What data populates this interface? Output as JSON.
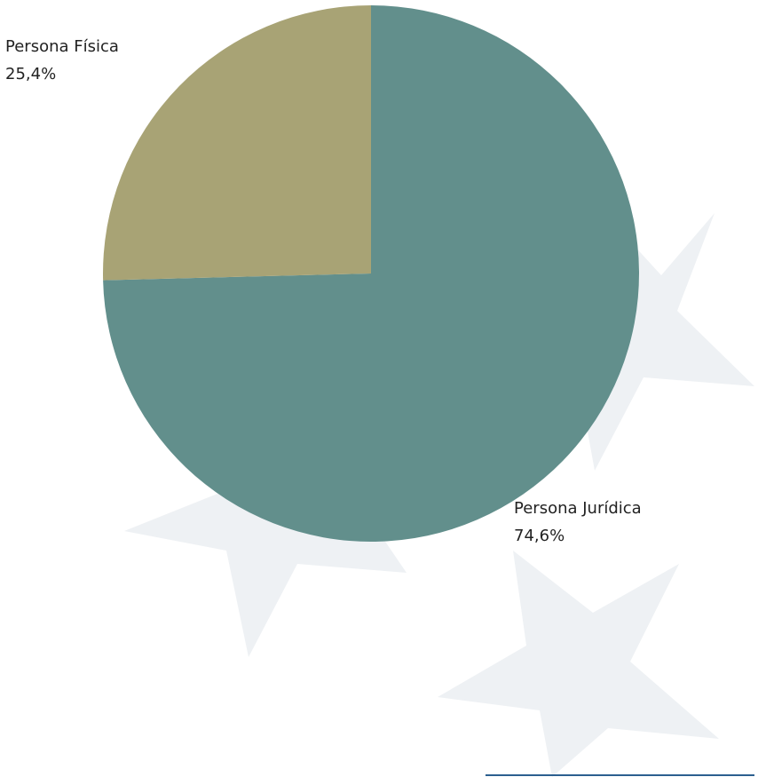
{
  "chart_data": {
    "type": "pie",
    "categories": [
      "Persona Jurídica",
      "Persona Física"
    ],
    "values": [
      74.6,
      25.4
    ],
    "value_labels": [
      "74,6%",
      "25,4%"
    ],
    "colors": [
      "#628f8c",
      "#a8a375"
    ]
  }
}
